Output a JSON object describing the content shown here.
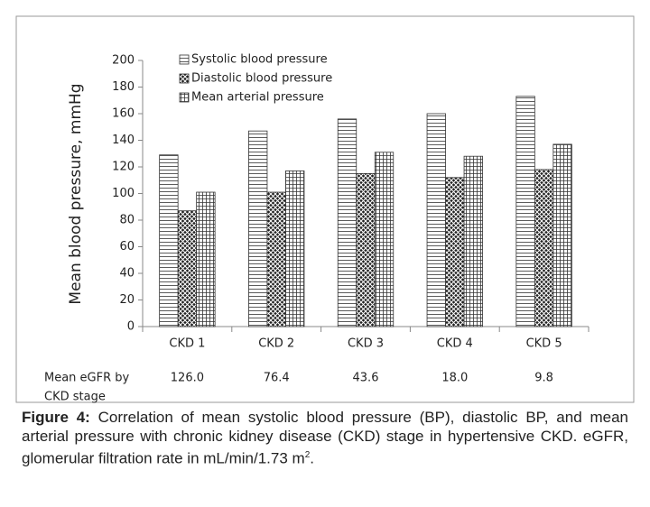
{
  "chart_data": {
    "type": "bar",
    "y_label": "Mean blood pressure, mmHg",
    "categories": [
      "CKD 1",
      "CKD 2",
      "CKD 3",
      "CKD 4",
      "CKD 5"
    ],
    "series": [
      {
        "name": "Systolic blood pressure",
        "pattern": "hlines",
        "values": [
          129,
          147,
          156,
          160,
          173
        ]
      },
      {
        "name": "Diastolic blood pressure",
        "pattern": "crosshatch",
        "values": [
          87,
          101,
          115,
          112,
          118
        ]
      },
      {
        "name": "Mean arterial pressure",
        "pattern": "grid",
        "values": [
          101,
          117,
          131,
          128,
          137
        ]
      }
    ],
    "ylim": [
      0,
      200
    ],
    "yticks": [
      0,
      20,
      40,
      60,
      80,
      100,
      120,
      140,
      160,
      180,
      200
    ],
    "egfr_row": {
      "label": [
        "Mean eGFR by",
        "CKD stage"
      ],
      "values": [
        "126.0",
        "76.4",
        "43.6",
        "18.0",
        "9.8"
      ]
    }
  },
  "caption": {
    "label": "Figure 4:",
    "text": "Correlation of mean systolic blood pressure (BP), diastolic BP, and mean arterial pressure with chronic kidney disease (CKD) stage in hypertensive CKD. eGFR, glomerular filtration rate in mL/min/1.73 m",
    "superscript": "2",
    "end": "."
  }
}
